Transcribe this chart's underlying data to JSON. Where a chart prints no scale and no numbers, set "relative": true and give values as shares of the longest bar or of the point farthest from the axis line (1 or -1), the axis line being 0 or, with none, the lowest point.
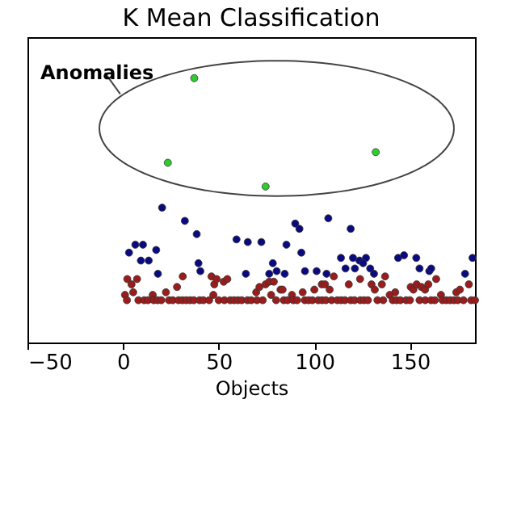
{
  "chart_data": {
    "type": "scatter",
    "title": "K Mean Classification",
    "xlabel": "Objects",
    "relative": true,
    "xlim": [
      -50,
      184
    ],
    "xticks": [
      -50,
      0,
      50,
      100,
      150
    ],
    "grid": false,
    "legend": false,
    "marker": "circle",
    "annotations": [
      "Anomalies"
    ],
    "series": [
      {
        "color": "#9b1c1c",
        "x": [
          1,
          2.2,
          4.4,
          5.3,
          7.3,
          15.5,
          22.4,
          28.2,
          31.2,
          46.2,
          47.7,
          48.9,
          52.6,
          54.5,
          47.2,
          69.6,
          71.3,
          74.5,
          76.4,
          78.8,
          77.4,
          82.3,
          83.4,
          88.3,
          93.9,
          100,
          103.9,
          105.6,
          110.2,
          108,
          118,
          123.9,
          129.9,
          131.6,
          137,
          135.3,
          139.4,
          142.3,
          150.4,
          151.8,
          153.5,
          156,
          157.9,
          159.6,
          163.7,
          166.2,
          174.2,
          176.1,
          180.8,
          2,
          8,
          11,
          13,
          16,
          18,
          20,
          24,
          26,
          29,
          31,
          33,
          35,
          37,
          40,
          42,
          45,
          50,
          53,
          56,
          58,
          60,
          62,
          65,
          67,
          70,
          73,
          80,
          84,
          86,
          89,
          91,
          95,
          97,
          99,
          102,
          104,
          106,
          109,
          112,
          114,
          116,
          119,
          121,
          124,
          126,
          128,
          133,
          136,
          141,
          143,
          145,
          148,
          150,
          155,
          158,
          161,
          163,
          167,
          169,
          171,
          173,
          175,
          178,
          182,
          184
        ],
        "values": [
          0.18,
          0.24,
          0.22,
          0.19,
          0.24,
          0.18,
          0.19,
          0.21,
          0.25,
          0.25,
          0.22,
          0.24,
          0.23,
          0.24,
          0.18,
          0.19,
          0.21,
          0.22,
          0.23,
          0.23,
          0.18,
          0.2,
          0.2,
          0.18,
          0.19,
          0.2,
          0.22,
          0.22,
          0.25,
          0.2,
          0.22,
          0.24,
          0.22,
          0.2,
          0.25,
          0.22,
          0.18,
          0.19,
          0.21,
          0.2,
          0.22,
          0.21,
          0.2,
          0.22,
          0.24,
          0.18,
          0.19,
          0.2,
          0.22,
          0.16,
          0.16,
          0.16,
          0.16,
          0.16,
          0.16,
          0.16,
          0.16,
          0.16,
          0.16,
          0.16,
          0.16,
          0.16,
          0.16,
          0.16,
          0.16,
          0.16,
          0.16,
          0.16,
          0.16,
          0.16,
          0.16,
          0.16,
          0.16,
          0.16,
          0.16,
          0.16,
          0.16,
          0.16,
          0.16,
          0.16,
          0.16,
          0.16,
          0.16,
          0.16,
          0.16,
          0.16,
          0.16,
          0.16,
          0.16,
          0.16,
          0.16,
          0.16,
          0.16,
          0.16,
          0.16,
          0.16,
          0.16,
          0.16,
          0.16,
          0.16,
          0.16,
          0.16,
          0.16,
          0.16,
          0.16,
          0.16,
          0.16,
          0.16,
          0.16,
          0.16,
          0.16,
          0.16,
          0.16,
          0.16,
          0.16
        ]
      },
      {
        "color": "#0a0a80",
        "x": [
          20.4,
          32.3,
          38.5,
          3.1,
          6.4,
          10.4,
          17.3,
          9.3,
          13.4,
          18.2,
          39.4,
          40.4,
          59.3,
          65.2,
          72.3,
          64.2,
          85.4,
          78.3,
          76.4,
          80.3,
          84.5,
          90,
          92.2,
          93.2,
          95.1,
          101.2,
          106.4,
          107.3,
          119,
          113.9,
          115.3,
          116.3,
          120.2,
          121.2,
          123.6,
          127,
          125.5,
          129.2,
          131.2,
          143.8,
          146.9,
          155,
          153.3,
          160.1,
          161.1,
          178.8,
          182.7
        ],
        "values": [
          0.51,
          0.46,
          0.41,
          0.34,
          0.37,
          0.37,
          0.35,
          0.31,
          0.31,
          0.26,
          0.3,
          0.27,
          0.39,
          0.38,
          0.38,
          0.26,
          0.37,
          0.3,
          0.26,
          0.27,
          0.26,
          0.45,
          0.43,
          0.34,
          0.27,
          0.27,
          0.26,
          0.47,
          0.43,
          0.32,
          null,
          0.28,
          0.32,
          0.28,
          0.31,
          0.32,
          0.3,
          0.28,
          0.26,
          0.32,
          0.33,
          0.28,
          0.32,
          0.27,
          0.28,
          0.26,
          0.32
        ]
      },
      {
        "color": "#2ecc2e",
        "x": [
          37.2,
          23.4,
          74.5,
          132.1
        ],
        "values": [
          1.0,
          0.68,
          0.59,
          0.72
        ]
      }
    ]
  }
}
